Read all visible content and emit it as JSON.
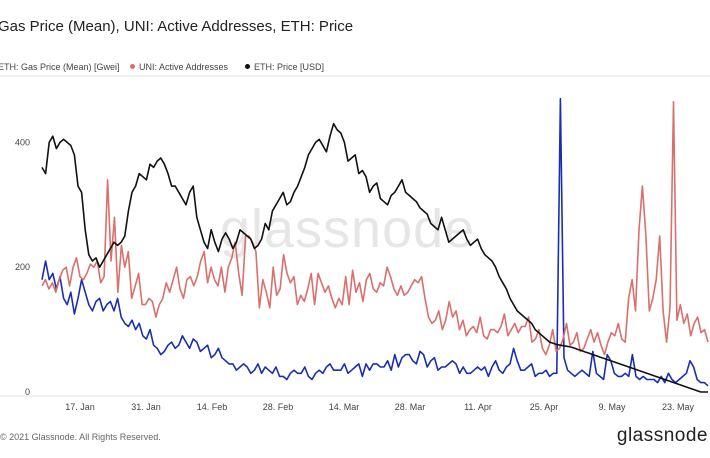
{
  "title": "Gas Price (Mean), UNI: Active Addresses, ETH: Price",
  "legend": [
    {
      "label": "ETH: Gas Price (Mean) [Gwei]",
      "color": "#1a2fb0"
    },
    {
      "label": "UNI: Active Addresses",
      "color": "#d9706c"
    },
    {
      "label": "ETH: Price [USD]",
      "color": "#111111"
    }
  ],
  "footer": "© 2021 Glassnode. All Rights Reserved.",
  "brand": "glassnode",
  "watermark": "glassnode",
  "chart_data": {
    "type": "line",
    "xlabels": [
      "17. Jan",
      "31. Jan",
      "14. Feb",
      "28. Feb",
      "14. Mar",
      "28. Mar",
      "11. Apr",
      "25. Apr",
      "9. May",
      "23. May"
    ],
    "yticks": [
      0,
      200,
      400
    ],
    "ylim": [
      0,
      500
    ],
    "grid": false,
    "legend_position": "top-left",
    "series": [
      {
        "name": "ETH: Gas Price (Mean) [Gwei]",
        "color": "#1a2fb0",
        "values": [
          180,
          210,
          180,
          190,
          165,
          185,
          150,
          140,
          160,
          125,
          150,
          180,
          160,
          140,
          130,
          145,
          150,
          130,
          140,
          145,
          130,
          150,
          120,
          110,
          105,
          115,
          100,
          110,
          90,
          85,
          100,
          75,
          70,
          60,
          65,
          75,
          80,
          70,
          75,
          90,
          80,
          70,
          85,
          80,
          65,
          70,
          75,
          55,
          60,
          70,
          55,
          50,
          45,
          45,
          35,
          40,
          45,
          40,
          30,
          35,
          45,
          30,
          40,
          35,
          30,
          40,
          25,
          25,
          20,
          30,
          35,
          30,
          30,
          40,
          25,
          20,
          30,
          35,
          30,
          40,
          45,
          35,
          35,
          35,
          45,
          30,
          35,
          40,
          45,
          25,
          45,
          35,
          45,
          45,
          40,
          40,
          50,
          35,
          60,
          40,
          55,
          60,
          60,
          50,
          45,
          65,
          60,
          40,
          50,
          55,
          35,
          40,
          40,
          45,
          50,
          45,
          30,
          40,
          30,
          30,
          35,
          40,
          35,
          40,
          25,
          40,
          50,
          35,
          30,
          40,
          45,
          70,
          50,
          35,
          35,
          40,
          45,
          25,
          30,
          30,
          35,
          25,
          30,
          30,
          470,
          55,
          35,
          30,
          25,
          30,
          35,
          30,
          25,
          65,
          30,
          25,
          20,
          60,
          50,
          30,
          25,
          25,
          30,
          25,
          60,
          25,
          20,
          25,
          20,
          20,
          20,
          15,
          25,
          15,
          30,
          20,
          15,
          20,
          25,
          30,
          50,
          40,
          20,
          15,
          15,
          10
        ]
      },
      {
        "name": "UNI: Active Addresses",
        "color": "#d9706c",
        "values": [
          170,
          180,
          165,
          175,
          160,
          180,
          195,
          200,
          170,
          200,
          215,
          185,
          180,
          190,
          205,
          200,
          210,
          175,
          185,
          340,
          210,
          280,
          160,
          235,
          200,
          225,
          150,
          170,
          190,
          140,
          140,
          150,
          145,
          120,
          140,
          150,
          175,
          160,
          180,
          200,
          165,
          150,
          180,
          185,
          170,
          185,
          210,
          225,
          175,
          200,
          180,
          170,
          200,
          160,
          200,
          215,
          240,
          190,
          155,
          250,
          250,
          240,
          225,
          135,
          180,
          160,
          135,
          200,
          155,
          165,
          220,
          190,
          175,
          185,
          140,
          155,
          145,
          165,
          190,
          140,
          190,
          175,
          160,
          170,
          150,
          135,
          150,
          140,
          185,
          140,
          195,
          160,
          175,
          145,
          180,
          190,
          165,
          160,
          175,
          170,
          200,
          185,
          165,
          155,
          170,
          155,
          160,
          170,
          180,
          175,
          185,
          150,
          120,
          110,
          115,
          130,
          100,
          115,
          145,
          120,
          130,
          100,
          115,
          90,
          100,
          105,
          95,
          120,
          90,
          85,
          100,
          100,
          95,
          105,
          125,
          90,
          100,
          110,
          95,
          105,
          105,
          120,
          80,
          85,
          100,
          70,
          60,
          75,
          100,
          65,
          70,
          85,
          110,
          75,
          80,
          95,
          65,
          70,
          85,
          100,
          80,
          95,
          75,
          60,
          80,
          95,
          90,
          110,
          85,
          80,
          150,
          180,
          130,
          260,
          330,
          250,
          130,
          150,
          180,
          250,
          130,
          80,
          135,
          465,
          115,
          140,
          110,
          125,
          90,
          110,
          120,
          95,
          100,
          80
        ]
      },
      {
        "name": "ETH: Price [USD]",
        "color": "#111111",
        "values": [
          360,
          350,
          400,
          410,
          390,
          400,
          405,
          400,
          395,
          380,
          330,
          320,
          260,
          220,
          210,
          215,
          200,
          210,
          220,
          230,
          240,
          235,
          240,
          250,
          290,
          320,
          330,
          350,
          345,
          340,
          365,
          360,
          370,
          375,
          365,
          350,
          330,
          330,
          320,
          310,
          300,
          320,
          330,
          280,
          260,
          240,
          230,
          260,
          240,
          225,
          245,
          255,
          245,
          230,
          240,
          260,
          255,
          250,
          245,
          230,
          235,
          245,
          270,
          260,
          290,
          300,
          310,
          320,
          300,
          305,
          320,
          330,
          345,
          360,
          380,
          390,
          400,
          405,
          395,
          385,
          410,
          430,
          420,
          415,
          400,
          370,
          375,
          380,
          350,
          355,
          345,
          320,
          330,
          335,
          310,
          305,
          300,
          315,
          320,
          330,
          340,
          320,
          315,
          310,
          305,
          295,
          290,
          285,
          270,
          265,
          260,
          280,
          260,
          240,
          245,
          250,
          255,
          260,
          245,
          235,
          240,
          245,
          230,
          220,
          215,
          210,
          200,
          185,
          175,
          165,
          150,
          140,
          130,
          125,
          120,
          115,
          110,
          100,
          95,
          90,
          85,
          80,
          78,
          76,
          75,
          74,
          73,
          72,
          70,
          68,
          66,
          64,
          62,
          60,
          58,
          56,
          54,
          52,
          50,
          48,
          46,
          44,
          42,
          40,
          38,
          36,
          34,
          32,
          30,
          28,
          26,
          24,
          22,
          20,
          18,
          16,
          14,
          12,
          10,
          8,
          6,
          4,
          2,
          0,
          0,
          0
        ]
      }
    ]
  }
}
